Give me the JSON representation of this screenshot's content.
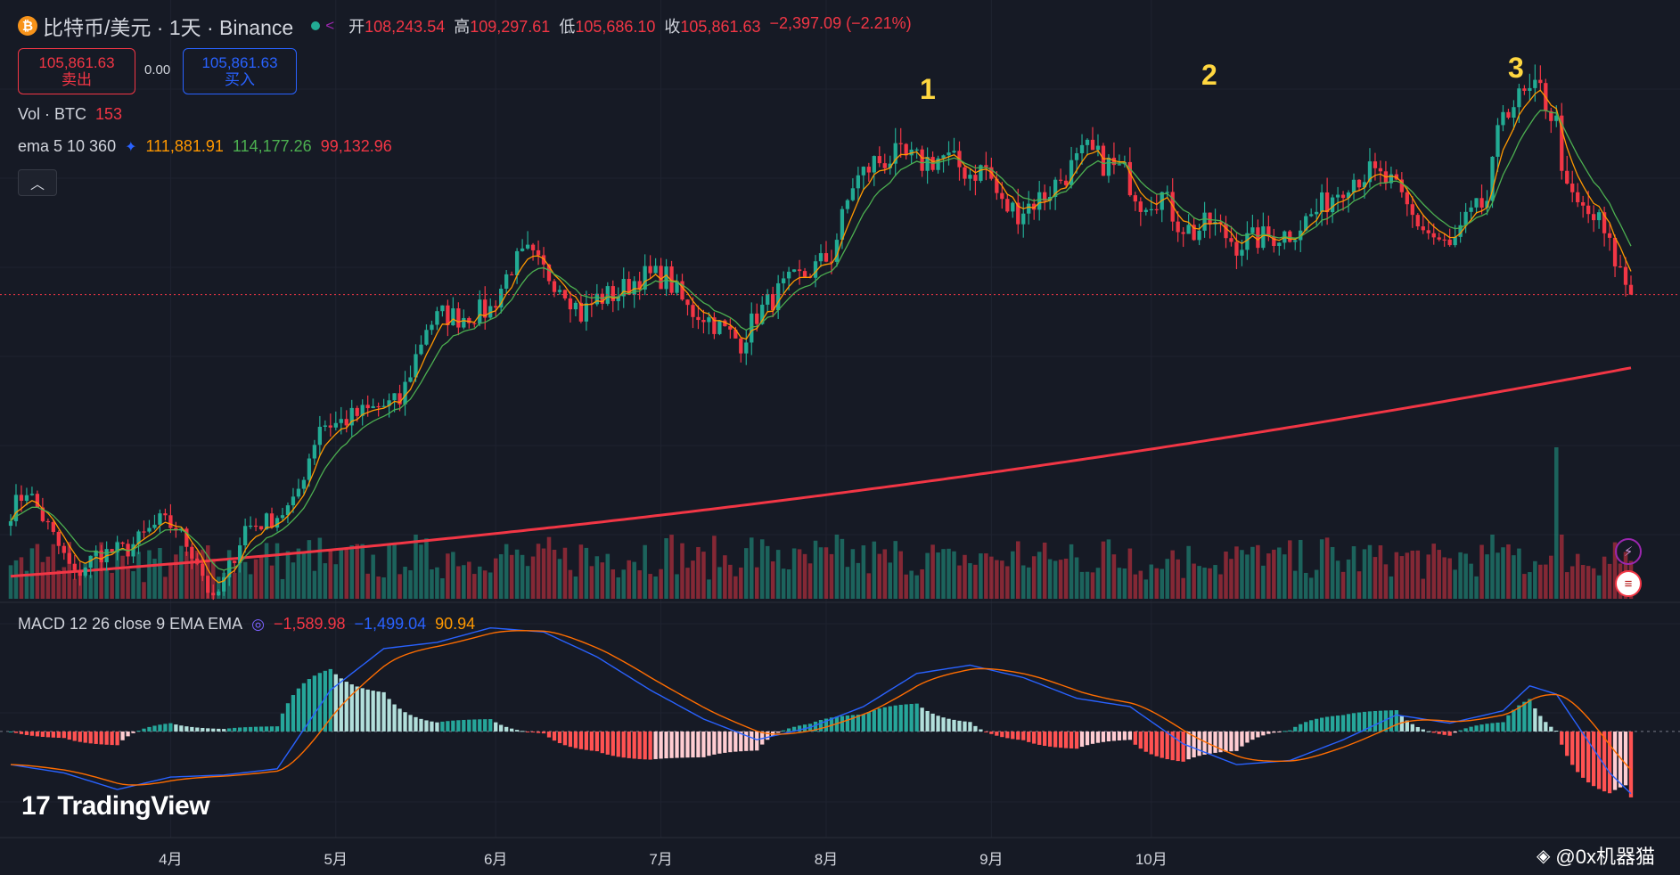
{
  "header": {
    "symbol": "比特币/美元 · 1天 · Binance",
    "coin_glyph": "₿",
    "ohlc": [
      {
        "k": "开",
        "v": "108,243.54"
      },
      {
        "k": "高",
        "v": "109,297.61"
      },
      {
        "k": "低",
        "v": "105,686.10"
      },
      {
        "k": "收",
        "v": "105,861.63"
      }
    ],
    "change": "−2,397.09 (−2.21%)"
  },
  "trade": {
    "sell_price": "105,861.63",
    "sell_label": "卖出",
    "spread": "0.00",
    "buy_price": "105,861.63",
    "buy_label": "买入"
  },
  "volume_legend": {
    "label": "Vol · BTC",
    "value": "153"
  },
  "ema_legend": {
    "label": "ema 5 10 360",
    "ema5": "111,881.91",
    "ema10": "114,177.26",
    "ema360": "99,132.96"
  },
  "macd_legend": {
    "label": "MACD 12 26 close 9 EMA EMA",
    "hist": "−1,589.98",
    "macd": "−1,499.04",
    "signal": "90.94"
  },
  "annotations": [
    "1",
    "2",
    "3"
  ],
  "x_axis": [
    "4月",
    "5月",
    "6月",
    "7月",
    "8月",
    "9月",
    "10月"
  ],
  "branding": {
    "logo": "TradingView",
    "logo_mark": "17",
    "watermark": "@0x机器猫"
  },
  "colors": {
    "up": "#22ab94",
    "down": "#f23645",
    "ema5": "#ff9800",
    "ema10": "#4caf50",
    "ema360": "#f23645",
    "macd": "#2962ff",
    "signal": "#ff6d00",
    "bg": "#161a25"
  },
  "chart_data": {
    "type": "candlestick",
    "title": "比特币/美元 · 1天 · Binance",
    "price_range": [
      74000,
      128000
    ],
    "x_ticks": [
      "4月",
      "5月",
      "6月",
      "7月",
      "8月",
      "9月",
      "10月"
    ],
    "anchors_close": [
      [
        0,
        86000
      ],
      [
        3,
        88000
      ],
      [
        7,
        84500
      ],
      [
        12,
        80000
      ],
      [
        16,
        82000
      ],
      [
        22,
        82500
      ],
      [
        28,
        85000
      ],
      [
        31,
        84500
      ],
      [
        35,
        81500
      ],
      [
        38,
        77500
      ],
      [
        40,
        79500
      ],
      [
        44,
        84500
      ],
      [
        48,
        85000
      ],
      [
        53,
        86500
      ],
      [
        58,
        94000
      ],
      [
        61,
        94000
      ],
      [
        65,
        94800
      ],
      [
        69,
        95500
      ],
      [
        73,
        96000
      ],
      [
        78,
        103000
      ],
      [
        81,
        104000
      ],
      [
        84,
        103800
      ],
      [
        90,
        104500
      ],
      [
        94,
        108500
      ],
      [
        97,
        109500
      ],
      [
        100,
        108000
      ],
      [
        104,
        106500
      ],
      [
        107,
        104000
      ],
      [
        110,
        105500
      ],
      [
        114,
        106000
      ],
      [
        118,
        107500
      ],
      [
        123,
        107500
      ],
      [
        127,
        104500
      ],
      [
        130,
        104000
      ],
      [
        134,
        102500
      ],
      [
        137,
        101500
      ],
      [
        140,
        104000
      ],
      [
        145,
        106500
      ],
      [
        150,
        108000
      ],
      [
        154,
        109500
      ],
      [
        158,
        116000
      ],
      [
        162,
        118000
      ],
      [
        166,
        118500
      ],
      [
        171,
        118000
      ],
      [
        175,
        118500
      ],
      [
        180,
        117000
      ],
      [
        183,
        117500
      ],
      [
        186,
        114000
      ],
      [
        189,
        113500
      ],
      [
        194,
        115000
      ],
      [
        199,
        117500
      ],
      [
        202,
        119000
      ],
      [
        205,
        118000
      ],
      [
        209,
        117000
      ],
      [
        212,
        114500
      ],
      [
        216,
        115000
      ],
      [
        219,
        112500
      ],
      [
        222,
        111500
      ],
      [
        225,
        112500
      ],
      [
        230,
        110500
      ],
      [
        234,
        111000
      ],
      [
        240,
        111500
      ],
      [
        245,
        113500
      ],
      [
        251,
        116500
      ],
      [
        255,
        117000
      ],
      [
        259,
        116000
      ],
      [
        263,
        113000
      ],
      [
        266,
        111500
      ],
      [
        270,
        110000
      ],
      [
        273,
        112500
      ],
      [
        277,
        114500
      ],
      [
        280,
        123000
      ],
      [
        284,
        124000
      ],
      [
        287,
        124500
      ],
      [
        290,
        121500
      ],
      [
        292,
        115000
      ],
      [
        295,
        113500
      ],
      [
        298,
        112500
      ],
      [
        301,
        109000
      ],
      [
        304,
        105861.63
      ]
    ],
    "ema360": {
      "start": 80000,
      "end": 99132.96
    },
    "volume_spikes": [
      {
        "day": 290,
        "volume_btc": 600
      }
    ],
    "macd": {
      "anchors_macd": [
        [
          0,
          -800
        ],
        [
          10,
          -1000
        ],
        [
          20,
          -1400
        ],
        [
          30,
          -1100
        ],
        [
          40,
          -1050
        ],
        [
          50,
          -900
        ],
        [
          60,
          1000
        ],
        [
          70,
          2000
        ],
        [
          80,
          2150
        ],
        [
          90,
          2500
        ],
        [
          100,
          2400
        ],
        [
          110,
          1800
        ],
        [
          120,
          1000
        ],
        [
          130,
          300
        ],
        [
          140,
          -200
        ],
        [
          150,
          100
        ],
        [
          160,
          600
        ],
        [
          170,
          1400
        ],
        [
          180,
          1600
        ],
        [
          190,
          1300
        ],
        [
          200,
          800
        ],
        [
          210,
          600
        ],
        [
          220,
          -300
        ],
        [
          230,
          -800
        ],
        [
          240,
          -700
        ],
        [
          250,
          -200
        ],
        [
          260,
          400
        ],
        [
          270,
          200
        ],
        [
          280,
          500
        ],
        [
          285,
          1100
        ],
        [
          290,
          900
        ],
        [
          300,
          -1000
        ],
        [
          304,
          -1499.04
        ]
      ],
      "signal_last": 90.94,
      "hist_last": -1589.98,
      "range": [
        -1700,
        2600
      ]
    }
  }
}
